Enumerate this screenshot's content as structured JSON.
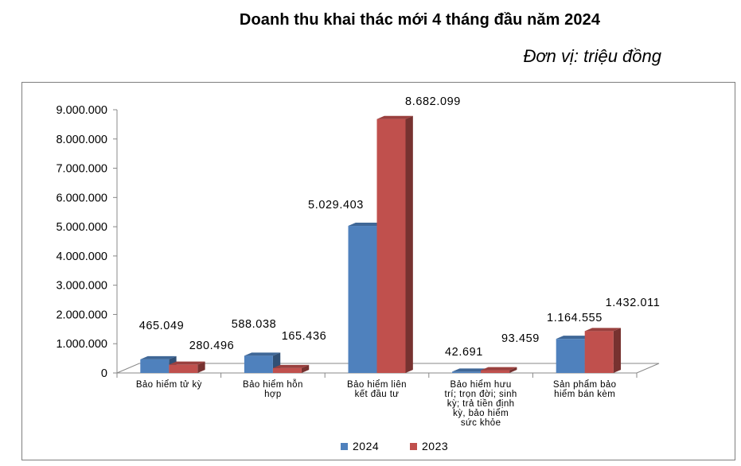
{
  "title": "Doanh thu khai thác mới 4 tháng đầu năm 2024",
  "unit": "Đơn vị: triệu đồng",
  "chart_data": {
    "type": "bar",
    "categories": [
      "Bảo hiểm tử kỳ",
      "Bảo hiểm hỗn hợp",
      "Bảo hiểm liên kết đầu tư",
      "Bảo hiểm hưu trí; trọn đời; sinh kỳ; trả tiền định kỳ, bảo hiểm sức khỏe",
      "Sản phẩm bảo hiểm bán kèm"
    ],
    "category_lines": [
      [
        "Bảo hiểm tử kỳ"
      ],
      [
        "Bảo hiểm hỗn",
        "hợp"
      ],
      [
        "Bảo hiểm liên",
        "kết đầu tư"
      ],
      [
        "Bảo hiểm hưu",
        "trí; trọn đời; sinh",
        "kỳ; trả tiền định",
        "kỳ, bảo hiểm",
        "sức khỏe"
      ],
      [
        "Sản phẩm bảo",
        "hiểm bán kèm"
      ]
    ],
    "series": [
      {
        "name": "2024",
        "color": "#4f81bd",
        "values": [
          465049,
          588038,
          5029403,
          42691,
          1164555
        ],
        "labels": [
          "465.049",
          "588.038",
          "5.029.403",
          "42.691",
          "1.164.555"
        ]
      },
      {
        "name": "2023",
        "color": "#c0504d",
        "values": [
          280496,
          165436,
          8682099,
          93459,
          1432011
        ],
        "labels": [
          "280.496",
          "165.436",
          "8.682.099",
          "93.459",
          "1.432.011"
        ]
      }
    ],
    "ylim": [
      0,
      9000000
    ],
    "y_ticks": [
      0,
      1000000,
      2000000,
      3000000,
      4000000,
      5000000,
      6000000,
      7000000,
      8000000,
      9000000
    ],
    "y_tick_labels": [
      "0",
      "1.000.000",
      "2.000.000",
      "3.000.000",
      "4.000.000",
      "5.000.000",
      "6.000.000",
      "7.000.000",
      "8.000.000",
      "9.000.000"
    ],
    "legend_position": "bottom",
    "grid": false,
    "style": "3d-bar"
  }
}
